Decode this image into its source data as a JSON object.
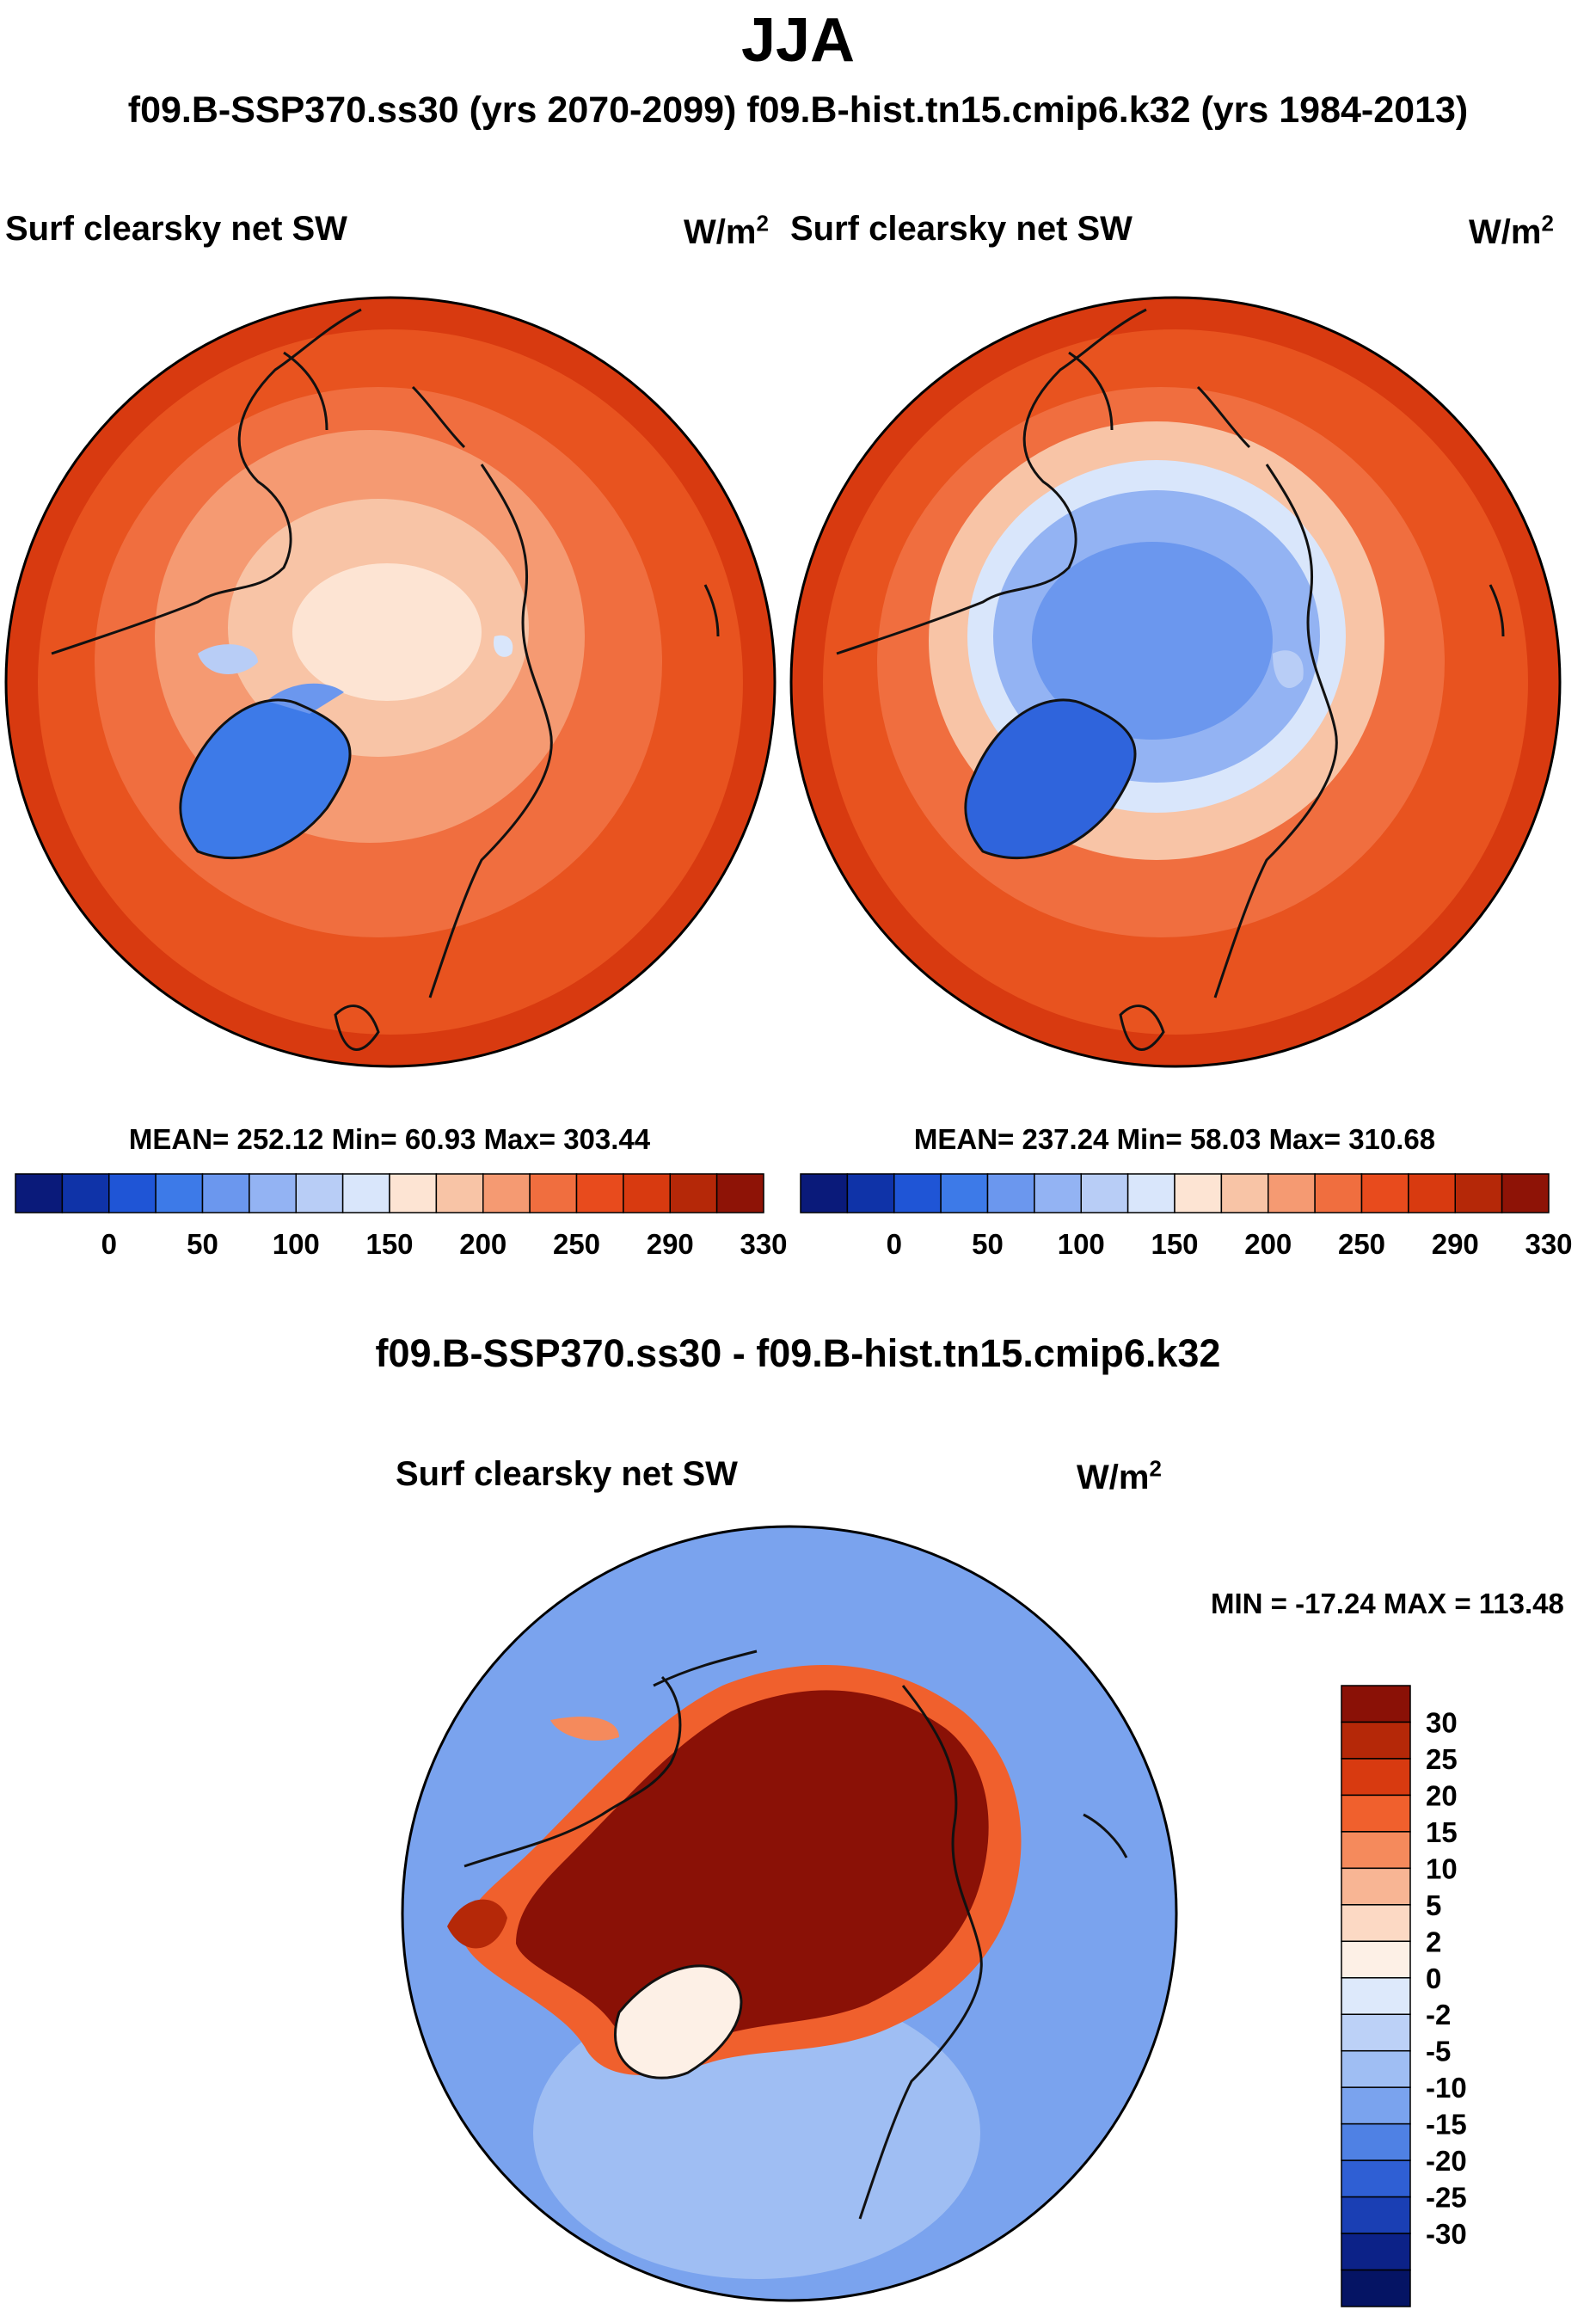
{
  "header": {
    "season": "JJA",
    "subtitle": "f09.B-SSP370.ss30 (yrs 2070-2099)  f09.B-hist.tn15.cmip6.k32 (yrs 1984-2013)"
  },
  "panels": [
    {
      "name": "case",
      "title": "Surf clearsky net SW",
      "units": "W/m",
      "units_exp": "2",
      "stats": "MEAN= 252.12  Min=  60.93  Max= 303.44"
    },
    {
      "name": "control",
      "title": "Surf clearsky net SW",
      "units": "W/m",
      "units_exp": "2",
      "stats": "MEAN= 237.24  Min=  58.03  Max= 310.68"
    }
  ],
  "abs_colorbar": {
    "colors": [
      "#0a1a7a",
      "#0f33a8",
      "#1f55d6",
      "#3d7ae8",
      "#6b97ee",
      "#93b3f3",
      "#b8cdf6",
      "#d9e6fb",
      "#fde4d3",
      "#f8c4a6",
      "#f59a72",
      "#f06e3f",
      "#e84b1d",
      "#d83a10",
      "#b52808",
      "#8e1306"
    ],
    "labels": [
      "0",
      "50",
      "100",
      "150",
      "200",
      "250",
      "290",
      "330"
    ]
  },
  "difference": {
    "title": "f09.B-SSP370.ss30 - f09.B-hist.tn15.cmip6.k32",
    "panel_title": "Surf clearsky net SW",
    "units": "W/m",
    "units_exp": "2",
    "minmax": "MIN = -17.24 MAX = 113.48",
    "colorbar": {
      "colors": [
        "#8a1106",
        "#b52808",
        "#d83a10",
        "#f0602d",
        "#f58a5c",
        "#f8b594",
        "#fcd9c4",
        "#fdf0e6",
        "#dde9fb",
        "#bcd1f7",
        "#9fbef3",
        "#7aa3ee",
        "#4f81e4",
        "#2f5fd4",
        "#1a3fb4",
        "#0c2288",
        "#051464"
      ],
      "labels": [
        "30",
        "25",
        "20",
        "15",
        "10",
        "5",
        "2",
        "0",
        "-2",
        "-5",
        "-10",
        "-15",
        "-20",
        "-25",
        "-30"
      ]
    }
  }
}
